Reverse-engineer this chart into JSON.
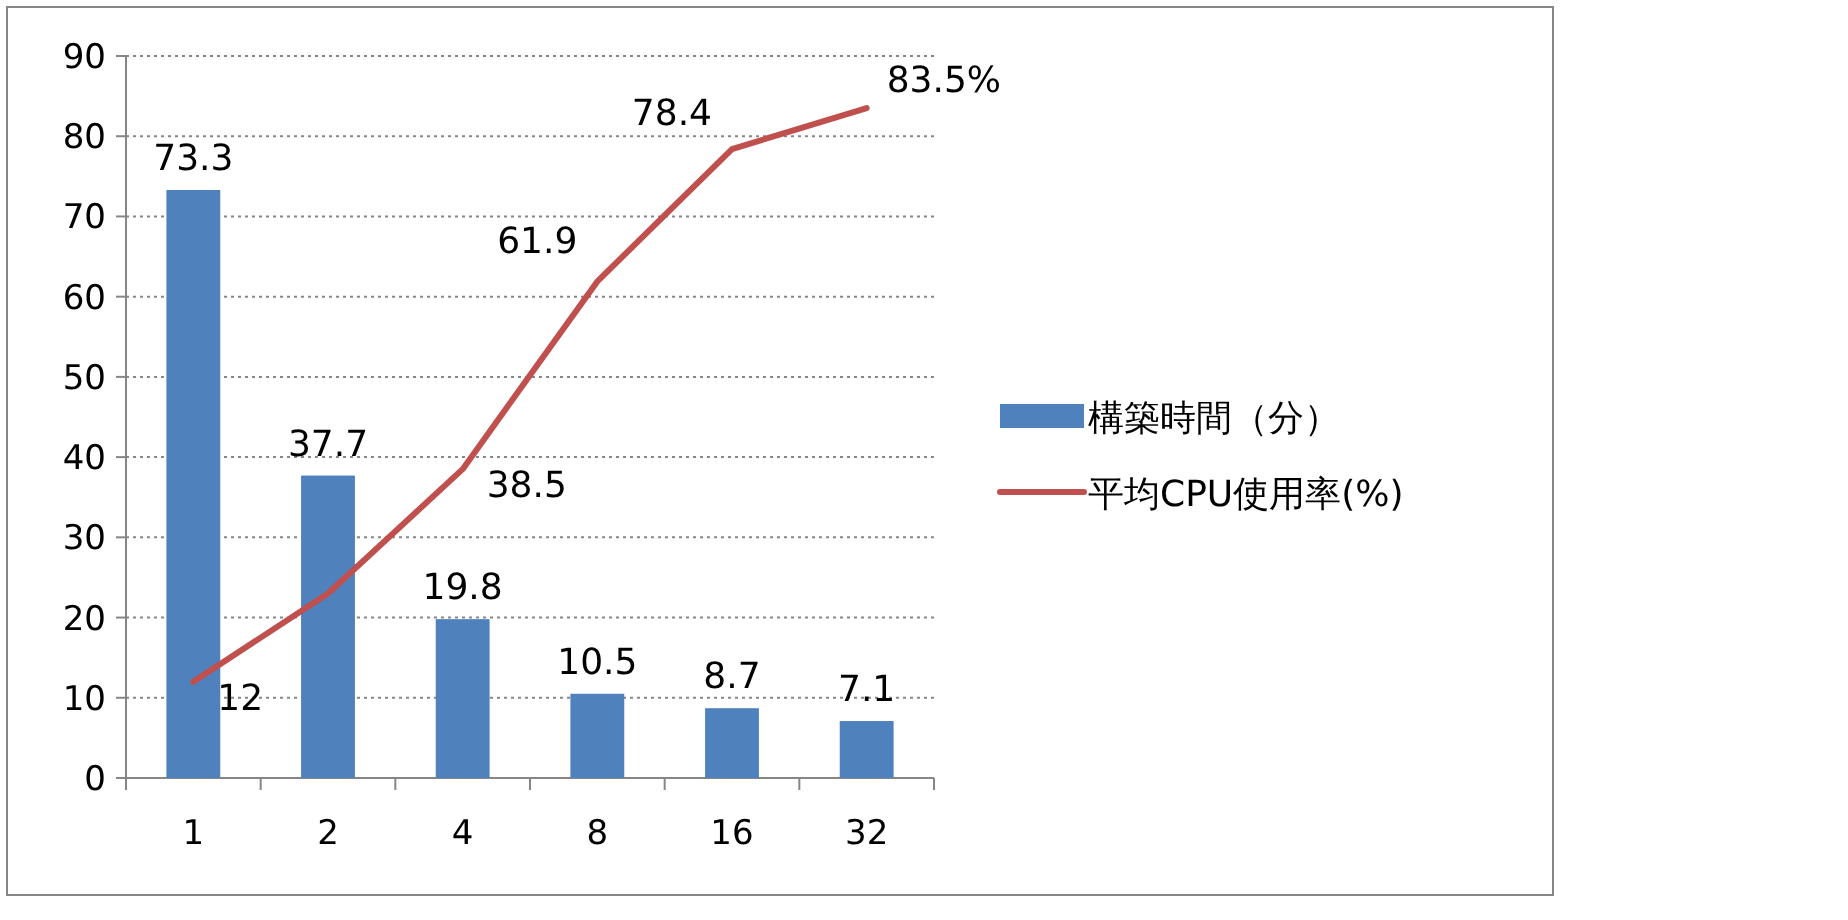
{
  "chart_data": {
    "type": "bar",
    "categories": [
      "1",
      "2",
      "4",
      "8",
      "16",
      "32"
    ],
    "series": [
      {
        "name": "構築時間（分）",
        "color": "#4f81bd",
        "values": [
          73.3,
          37.7,
          19.8,
          10.5,
          8.7,
          7.1
        ],
        "value_labels": [
          "73.3",
          "37.7",
          "19.8",
          "10.5",
          "8.7",
          "7.1"
        ]
      },
      {
        "name": "平均CPU使用率(%)",
        "type": "line",
        "color": "#c0504d",
        "values": [
          12,
          23,
          38.5,
          61.9,
          78.4,
          83.5
        ],
        "value_labels": [
          "12",
          null,
          "38.5",
          "61.9",
          "78.4",
          "83.5%"
        ]
      }
    ],
    "ylim": [
      0,
      90
    ],
    "yticks": [
      0,
      10,
      20,
      30,
      40,
      50,
      60,
      70,
      80,
      90
    ],
    "grid": "y",
    "legend": "right"
  }
}
